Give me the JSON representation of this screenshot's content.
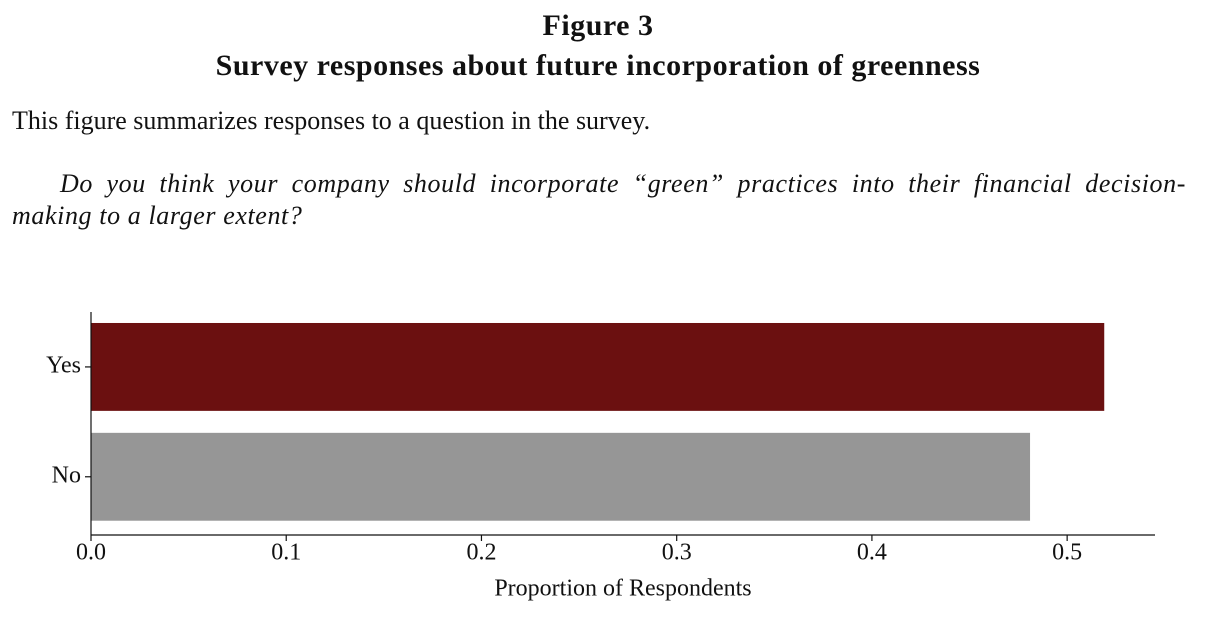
{
  "figure_label": "Figure 3",
  "title": "Survey responses about future incorporation of greenness",
  "description": "This figure summarizes responses to a question in the survey.",
  "question": "Do you think your company should incorporate “green” practices into their financial decision-making to a larger extent?",
  "chart_data": {
    "type": "barh",
    "categories": [
      "Yes",
      "No"
    ],
    "values": [
      0.519,
      0.481
    ],
    "colors": [
      "#6b1010",
      "#969696"
    ],
    "xlabel": "Proportion of Respondents",
    "xlim": [
      0,
      0.545
    ],
    "xticks": [
      {
        "value": 0,
        "label": "0.0"
      },
      0.1,
      0.2,
      0.3,
      0.4,
      0.5
    ]
  }
}
